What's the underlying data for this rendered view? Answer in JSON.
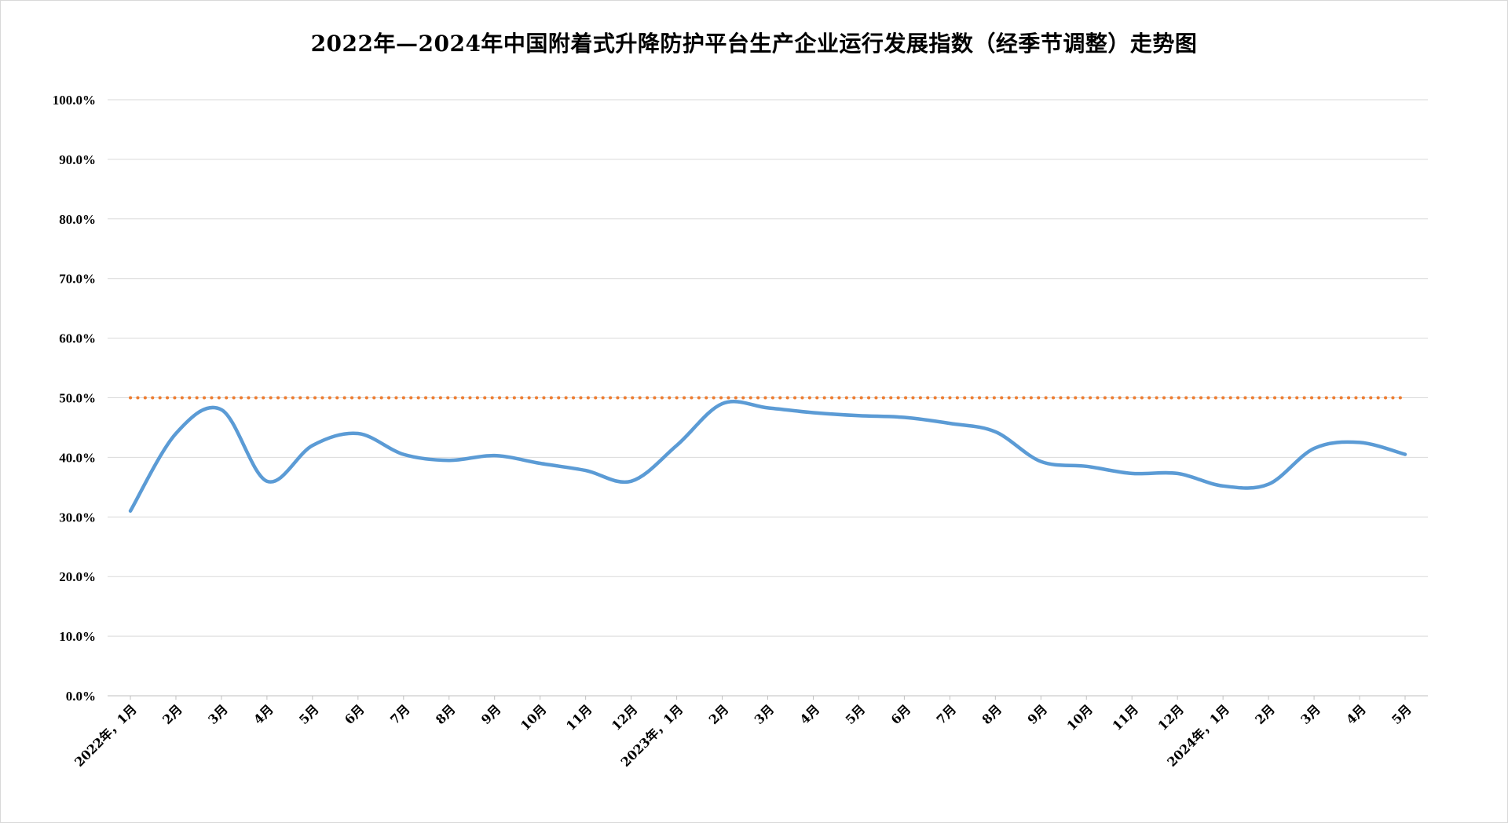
{
  "chart_data": {
    "type": "line",
    "title": "2022年—2024年中国附着式升降防护平台生产企业运行发展指数（经季节调整）走势图",
    "xlabel": "",
    "ylabel": "",
    "ylim": [
      0,
      100
    ],
    "yticks": [
      "0.0%",
      "10.0%",
      "20.0%",
      "30.0%",
      "40.0%",
      "50.0%",
      "60.0%",
      "70.0%",
      "80.0%",
      "90.0%",
      "100.0%"
    ],
    "categories": [
      "2022年，1月",
      "2月",
      "3月",
      "4月",
      "5月",
      "6月",
      "7月",
      "8月",
      "9月",
      "10月",
      "11月",
      "12月",
      "2023年，1月",
      "2月",
      "3月",
      "4月",
      "5月",
      "6月",
      "7月",
      "8月",
      "9月",
      "10月",
      "11月",
      "12月",
      "2024年，1月",
      "2月",
      "3月",
      "4月",
      "5月"
    ],
    "grid": true,
    "legend": "none",
    "series": [
      {
        "color": "#5b9bd5",
        "style": "smooth",
        "values": [
          31.0,
          44.0,
          48.0,
          36.0,
          42.0,
          44.0,
          40.5,
          39.5,
          40.3,
          39.0,
          37.8,
          36.0,
          42.0,
          49.0,
          48.3,
          47.5,
          47.0,
          46.7,
          45.7,
          44.3,
          39.3,
          38.5,
          37.3,
          37.3,
          35.2,
          35.5,
          41.5,
          42.5,
          40.5
        ]
      },
      {
        "color": "#ed7d31",
        "style": "dotted",
        "values": [
          50,
          50,
          50,
          50,
          50,
          50,
          50,
          50,
          50,
          50,
          50,
          50,
          50,
          50,
          50,
          50,
          50,
          50,
          50,
          50,
          50,
          50,
          50,
          50,
          50,
          50,
          50,
          50,
          50
        ]
      }
    ]
  }
}
